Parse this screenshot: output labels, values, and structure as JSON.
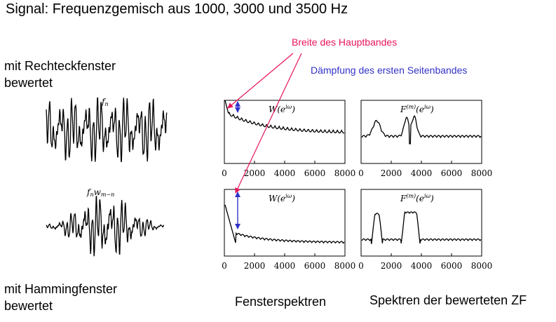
{
  "title": "Signal: Frequenzgemisch aus 1000, 3000 und 3500 Hz",
  "rect_label": [
    "mit Rechteckfenster",
    "bewertet"
  ],
  "hamming_label": [
    "mit Hammingfenster",
    "bewertet"
  ],
  "annotation_width": "Breite des Hauptbandes",
  "annotation_damping": "Dämpfung des ersten Seitenbandes",
  "caption_window": "Fensterspektren",
  "caption_spectra": "Spektren der bewerteten ZF",
  "signal_top_label": "f_n",
  "signal_bottom_label": "f_n w_{m−n}",
  "window_plot_label": "W(e^{iω})",
  "spectrum_plot_label": "F^{(m)}(e^{iω})",
  "x_ticks": [
    "0",
    "2000",
    "4000",
    "6000",
    "8000"
  ],
  "colors": {
    "red": "#e8145a",
    "blue": "#3232c8"
  }
}
